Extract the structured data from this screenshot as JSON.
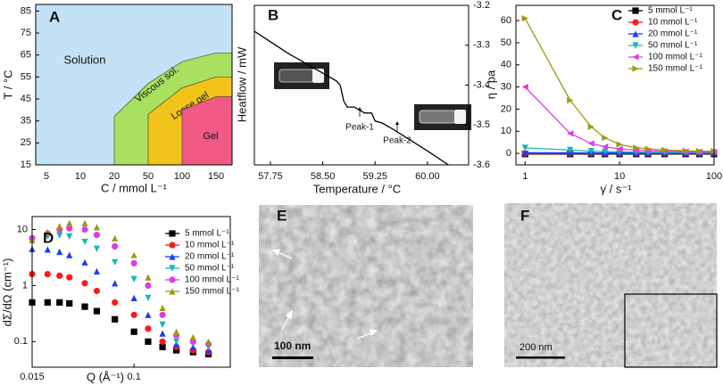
{
  "chart_data": [
    {
      "type": "area",
      "label": "A",
      "x_label": "C / mmol L⁻¹",
      "y_label": "T / °C",
      "categories": [
        "5",
        "10",
        "20",
        "50",
        "100",
        "150"
      ],
      "ylim": [
        15,
        88
      ],
      "yticks": [
        15,
        25,
        35,
        45,
        55,
        65,
        75,
        85
      ],
      "background_color": "#c2e3f5",
      "annotations": [
        "Solution"
      ],
      "series": [
        {
          "name": "Viscous sol.",
          "color": "#a8e05f",
          "values": [
            null,
            null,
            37,
            52,
            62,
            66
          ]
        },
        {
          "name": "Loose gel",
          "color": "#f2c318",
          "values": [
            null,
            null,
            null,
            38,
            50,
            55
          ]
        },
        {
          "name": "Gel",
          "color": "#f05a84",
          "values": [
            null,
            null,
            null,
            null,
            40,
            46
          ]
        }
      ]
    },
    {
      "type": "line",
      "label": "B",
      "x_label": "Temperature / °C",
      "y_label": "Heatflow / mW",
      "y_axis_side": "right",
      "color": "#000000",
      "x": [
        57.52,
        58.0,
        58.5,
        58.7,
        58.75,
        58.8,
        58.85,
        58.95,
        59.1,
        59.2,
        59.25,
        59.35,
        59.5,
        60.0,
        60.3
      ],
      "values": [
        -3.265,
        -3.32,
        -3.37,
        -3.39,
        -3.4,
        -3.44,
        -3.455,
        -3.455,
        -3.47,
        -3.47,
        -3.49,
        -3.495,
        -3.51,
        -3.565,
        -3.6
      ],
      "xlim": [
        57.52,
        60.59
      ],
      "xticks": [
        57.75,
        {
          "value": 58.5,
          "label": "58.50"
        },
        59.25,
        {
          "value": 60,
          "label": "60.00"
        }
      ],
      "ylim": [
        -3.6,
        -3.2
      ],
      "yticks": [
        -3.2,
        -3.3,
        -3.4,
        -3.5,
        -3.6
      ],
      "annotations": [
        "Peak-1",
        "Peak-2"
      ]
    },
    {
      "type": "line",
      "label": "C",
      "x_label": "γ̇ / s⁻¹",
      "y_label": "η / pa",
      "xlog": true,
      "legend": true,
      "x": [
        1,
        3,
        5,
        7,
        10,
        15,
        20,
        30,
        50,
        70,
        100
      ],
      "xlim": [
        0.8,
        100
      ],
      "xticks": [
        1,
        10,
        100
      ],
      "ylim": [
        -5.2,
        66.9
      ],
      "yticks": [
        0,
        10,
        20,
        30,
        40,
        50,
        60
      ],
      "series": [
        {
          "name": "5 mmol L⁻¹",
          "color": "#000000",
          "marker": "square",
          "values": [
            -0.3,
            -0.3,
            -0.3,
            -0.3,
            -0.3,
            -0.3,
            -0.3,
            -0.3,
            -0.3,
            -0.3,
            -0.3
          ]
        },
        {
          "name": "10 mmol L⁻¹",
          "color": "#ff1a1a",
          "marker": "circle",
          "values": [
            0,
            0,
            0,
            0,
            0,
            0,
            0,
            0,
            0,
            0,
            0
          ]
        },
        {
          "name": "20 mmol L⁻¹",
          "color": "#1a3cff",
          "marker": "triangle-up",
          "values": [
            0.3,
            0.3,
            0.2,
            0.2,
            0.2,
            0.2,
            0.2,
            0.2,
            0.2,
            0.2,
            0.2
          ]
        },
        {
          "name": "50 mmol L⁻¹",
          "color": "#17b8b0",
          "marker": "triangle-down",
          "values": [
            2.5,
            1.5,
            1,
            0.8,
            0.7,
            0.6,
            0.5,
            0.5,
            0.4,
            0.4,
            0.4
          ]
        },
        {
          "name": "100 mmol L⁻¹",
          "color": "#e03ce0",
          "marker": "triangle-left",
          "values": [
            30,
            9,
            4.5,
            3,
            2,
            1.5,
            1.2,
            1,
            0.8,
            0.7,
            0.6
          ]
        },
        {
          "name": "150 mmol L⁻¹",
          "color": "#9c9a12",
          "marker": "triangle-right",
          "values": [
            61,
            24,
            12,
            7,
            4,
            2.5,
            2,
            1.5,
            1.2,
            1,
            1
          ]
        }
      ]
    },
    {
      "type": "line",
      "label": "D",
      "x_label": "Q (Å⁻¹)",
      "y_label": "dΣ/dΩ (cm⁻¹)",
      "xlog": true,
      "ylog": true,
      "legend": true,
      "connect": false,
      "x": [
        0.015,
        0.02,
        0.025,
        0.03,
        0.04,
        0.05,
        0.07,
        0.1,
        0.13,
        0.17,
        0.22,
        0.3,
        0.4
      ],
      "xlim": [
        0.015,
        0.6
      ],
      "xticks": [
        0.015,
        0.1
      ],
      "ylim": [
        0.035,
        17
      ],
      "yticks": [
        0.1,
        1,
        10
      ],
      "series": [
        {
          "name": "5 mmol L⁻¹",
          "color": "#000000",
          "marker": "square",
          "values": [
            0.5,
            0.5,
            0.5,
            0.48,
            0.42,
            0.35,
            0.25,
            0.15,
            0.1,
            0.08,
            0.07,
            0.065,
            0.06
          ]
        },
        {
          "name": "10 mmol L⁻¹",
          "color": "#ff1a1a",
          "marker": "circle",
          "values": [
            1.6,
            1.6,
            1.5,
            1.4,
            1.1,
            0.8,
            0.5,
            0.3,
            0.17,
            0.1,
            0.08,
            0.07,
            0.065
          ]
        },
        {
          "name": "20 mmol L⁻¹",
          "color": "#1a3cff",
          "marker": "triangle-up",
          "values": [
            4.5,
            4.4,
            4,
            3.5,
            2.6,
            1.8,
            1.1,
            0.6,
            0.3,
            0.14,
            0.09,
            0.08,
            0.07
          ]
        },
        {
          "name": "50 mmol L⁻¹",
          "color": "#17b8b0",
          "marker": "triangle-down",
          "values": [
            6.5,
            7.5,
            7.8,
            7.5,
            6,
            4.5,
            2.6,
            1.3,
            0.6,
            0.2,
            0.1,
            0.09,
            0.08
          ]
        },
        {
          "name": "100 mmol L⁻¹",
          "color": "#e03ce0",
          "marker": "circle",
          "values": [
            7,
            8.5,
            10,
            10.5,
            10,
            8,
            5,
            2.5,
            1,
            0.3,
            0.13,
            0.1,
            0.09
          ]
        },
        {
          "name": "150 mmol L⁻¹",
          "color": "#9c9a12",
          "marker": "triangle-up",
          "values": [
            6.5,
            9,
            11.5,
            13,
            13,
            11,
            7,
            3.5,
            1.4,
            0.4,
            0.15,
            0.12,
            0.1
          ]
        }
      ]
    }
  ],
  "images": [
    {
      "label": "E",
      "scale_bar": "100 nm"
    },
    {
      "label": "F",
      "scale_bar": "200 nm"
    }
  ]
}
